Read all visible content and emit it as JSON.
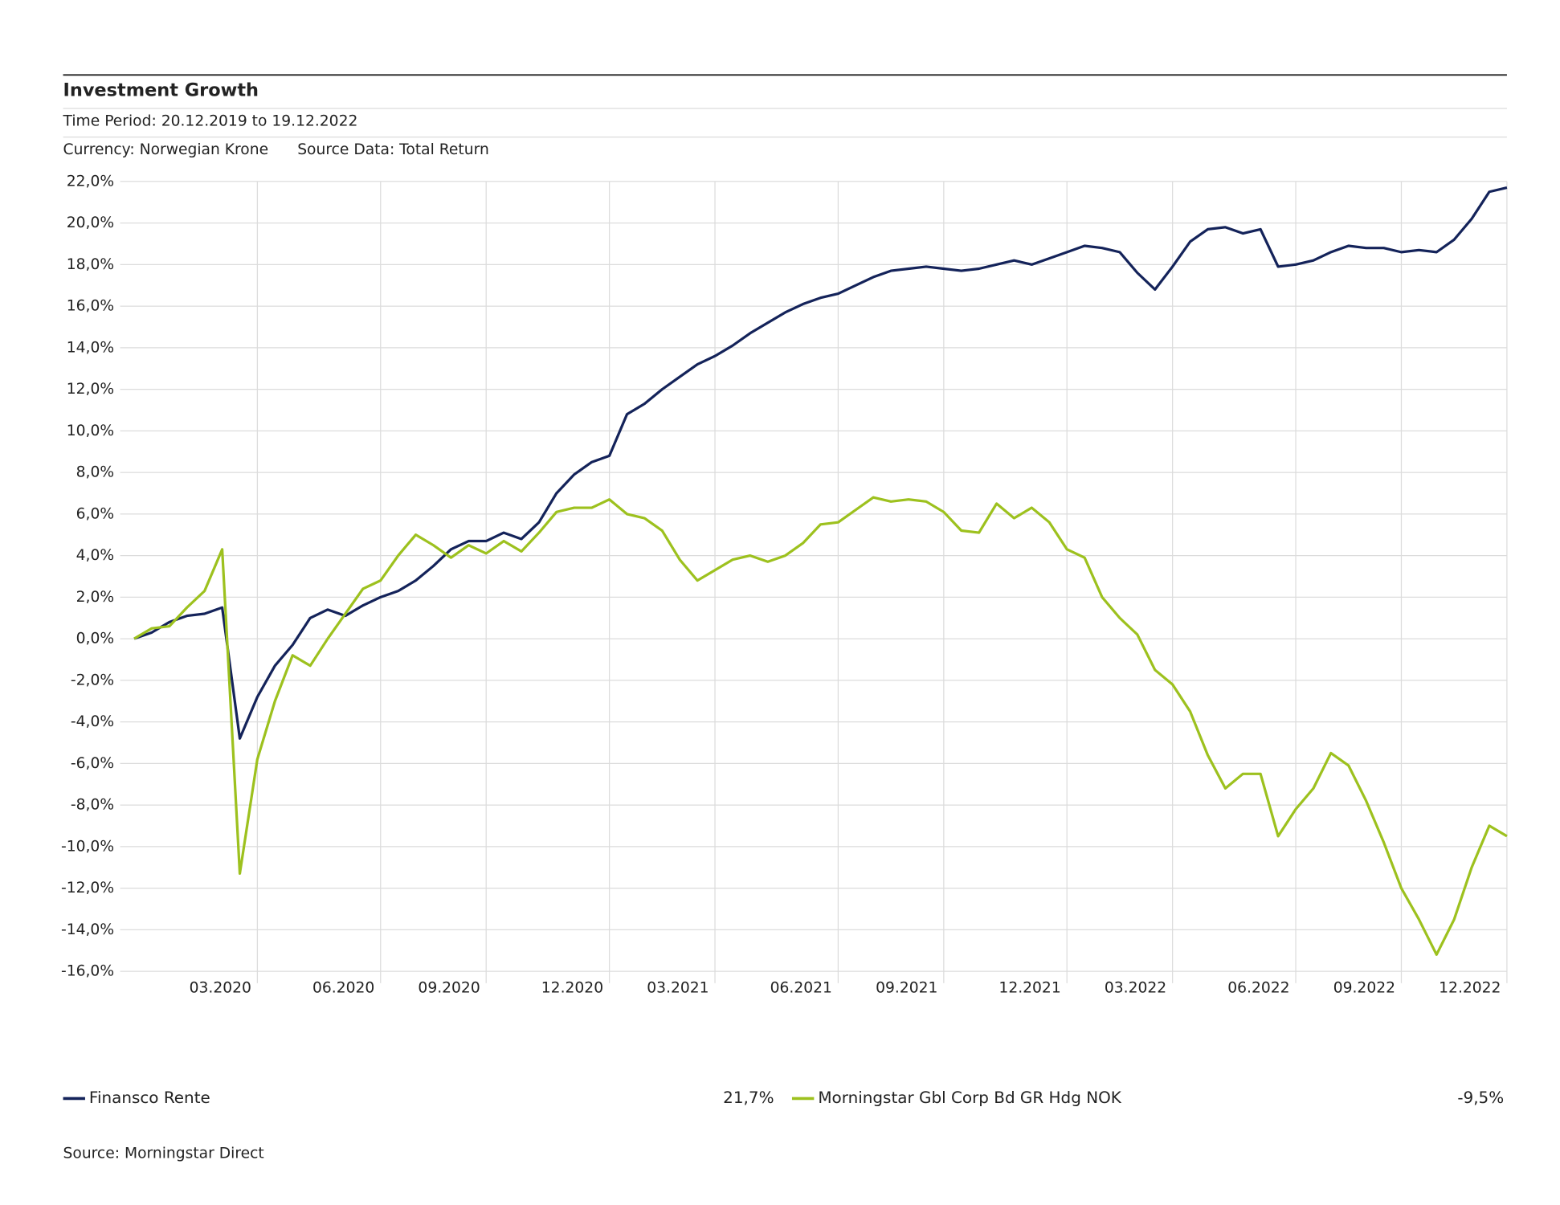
{
  "header": {
    "title": "Investment Growth",
    "time_period": "Time Period: 20.12.2019 to 19.12.2022",
    "currency": "Currency: Norwegian Krone",
    "source_data": "Source Data: Total Return"
  },
  "chart_data": {
    "type": "line",
    "categories": [
      null,
      null,
      null,
      null,
      null,
      null,
      null,
      "03.2020",
      null,
      null,
      null,
      null,
      null,
      null,
      "06.2020",
      null,
      null,
      null,
      null,
      null,
      "09.2020",
      null,
      null,
      null,
      null,
      null,
      null,
      "12.2020",
      null,
      null,
      null,
      null,
      null,
      "03.2021",
      null,
      null,
      null,
      null,
      null,
      null,
      "06.2021",
      null,
      null,
      null,
      null,
      null,
      "09.2021",
      null,
      null,
      null,
      null,
      null,
      null,
      "12.2021",
      null,
      null,
      null,
      null,
      null,
      "03.2022",
      null,
      null,
      null,
      null,
      null,
      null,
      "06.2022",
      null,
      null,
      null,
      null,
      null,
      "09.2022",
      null,
      null,
      null,
      null,
      null,
      "12.2022"
    ],
    "series": [
      {
        "name": "Finansco Rente",
        "color": "#14235a",
        "return_label": "21,7%",
        "values": [
          0,
          0.3,
          0.8,
          1.1,
          1.2,
          1.5,
          -4.8,
          -2.8,
          -1.3,
          -0.3,
          1.0,
          1.4,
          1.1,
          1.6,
          2.0,
          2.3,
          2.8,
          3.5,
          4.3,
          4.7,
          4.7,
          5.1,
          4.8,
          5.6,
          7.0,
          7.9,
          8.5,
          8.8,
          10.8,
          11.3,
          12.0,
          12.6,
          13.2,
          13.6,
          14.1,
          14.7,
          15.2,
          15.7,
          16.1,
          16.4,
          16.6,
          17.0,
          17.4,
          17.7,
          17.8,
          17.9,
          17.8,
          17.7,
          17.8,
          18.0,
          18.2,
          18.0,
          18.3,
          18.6,
          18.9,
          18.8,
          18.6,
          17.6,
          16.8,
          17.9,
          19.1,
          19.7,
          19.8,
          19.5,
          19.7,
          17.9,
          18.0,
          18.2,
          18.6,
          18.9,
          18.8,
          18.8,
          18.6,
          18.7,
          18.6,
          19.2,
          20.2,
          21.5,
          21.7
        ]
      },
      {
        "name": "Morningstar Gbl Corp Bd GR Hdg NOK",
        "color": "#9dc11e",
        "return_label": "-9,5%",
        "values": [
          0,
          0.5,
          0.6,
          1.5,
          2.3,
          4.3,
          -11.3,
          -5.8,
          -3.0,
          -0.8,
          -1.3,
          0.0,
          1.2,
          2.4,
          2.8,
          4.0,
          5.0,
          4.5,
          3.9,
          4.5,
          4.1,
          4.7,
          4.2,
          5.1,
          6.1,
          6.3,
          6.3,
          6.7,
          6.0,
          5.8,
          5.2,
          3.8,
          2.8,
          3.3,
          3.8,
          4.0,
          3.7,
          4.0,
          4.6,
          5.5,
          5.6,
          6.2,
          6.8,
          6.6,
          6.7,
          6.6,
          6.1,
          5.2,
          5.1,
          6.5,
          5.8,
          6.3,
          5.6,
          4.3,
          3.9,
          2.0,
          1.0,
          0.2,
          -1.5,
          -2.2,
          -3.5,
          -5.6,
          -7.2,
          -6.5,
          -6.5,
          -9.5,
          -8.2,
          -7.2,
          -5.5,
          -6.1,
          -7.8,
          -9.8,
          -12.0,
          -13.5,
          -15.2,
          -13.5,
          -11.0,
          -9.0,
          -9.5
        ]
      }
    ],
    "ylim": [
      -16,
      22
    ],
    "yticks": [
      {
        "value": 22,
        "label": "22,0%"
      },
      {
        "value": 20,
        "label": "20,0%"
      },
      {
        "value": 18,
        "label": "18,0%"
      },
      {
        "value": 16,
        "label": "16,0%"
      },
      {
        "value": 14,
        "label": "14,0%"
      },
      {
        "value": 12,
        "label": "12,0%"
      },
      {
        "value": 10,
        "label": "10,0%"
      },
      {
        "value": 8,
        "label": "8,0%"
      },
      {
        "value": 6,
        "label": "6,0%"
      },
      {
        "value": 4,
        "label": "4,0%"
      },
      {
        "value": 2,
        "label": "2,0%"
      },
      {
        "value": 0,
        "label": "0,0%"
      },
      {
        "value": -2,
        "label": "-2,0%"
      },
      {
        "value": -4,
        "label": "-4,0%"
      },
      {
        "value": -6,
        "label": "-6,0%"
      },
      {
        "value": -8,
        "label": "-8,0%"
      },
      {
        "value": -10,
        "label": "-10,0%"
      },
      {
        "value": -12,
        "label": "-12,0%"
      },
      {
        "value": -14,
        "label": "-14,0%"
      },
      {
        "value": -16,
        "label": "-16,0%"
      }
    ],
    "grid": true
  },
  "footer": {
    "source": "Source: Morningstar Direct"
  }
}
